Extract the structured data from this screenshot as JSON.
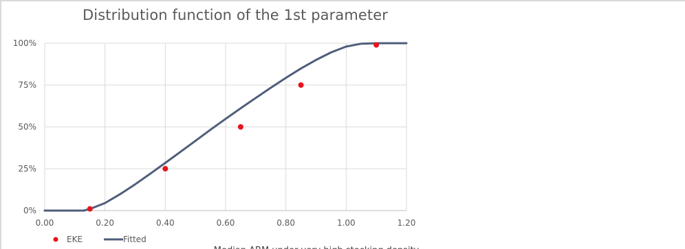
{
  "chart_data": {
    "type": "line",
    "title": "Distribution function of  the 1st parameter",
    "xlabel": "Median ABM under very high stocking density",
    "ylabel": "",
    "xlim": [
      0,
      1.2
    ],
    "ylim": [
      0,
      1
    ],
    "x_ticks": [
      "0.00",
      "0.20",
      "0.40",
      "0.60",
      "0.80",
      "1.00",
      "1.20"
    ],
    "y_ticks": [
      "0%",
      "25%",
      "50%",
      "75%",
      "100%"
    ],
    "grid": true,
    "legend_position": "bottom-left",
    "series": [
      {
        "name": "EKE",
        "kind": "scatter",
        "color": "#e8141c",
        "x": [
          0.15,
          0.4,
          0.65,
          0.85,
          1.1
        ],
        "y": [
          0.01,
          0.25,
          0.5,
          0.75,
          0.99
        ]
      },
      {
        "name": "Fitted",
        "kind": "line",
        "color": "#4e5d7a",
        "x": [
          0.0,
          0.13,
          0.15,
          0.2,
          0.25,
          0.3,
          0.35,
          0.4,
          0.45,
          0.5,
          0.55,
          0.6,
          0.65,
          0.7,
          0.75,
          0.8,
          0.85,
          0.9,
          0.95,
          1.0,
          1.05,
          1.1,
          1.2
        ],
        "y": [
          0.0,
          0.0,
          0.01,
          0.045,
          0.098,
          0.157,
          0.22,
          0.285,
          0.351,
          0.417,
          0.483,
          0.548,
          0.611,
          0.673,
          0.734,
          0.793,
          0.849,
          0.9,
          0.945,
          0.98,
          0.997,
          1.0,
          1.0
        ]
      }
    ]
  }
}
